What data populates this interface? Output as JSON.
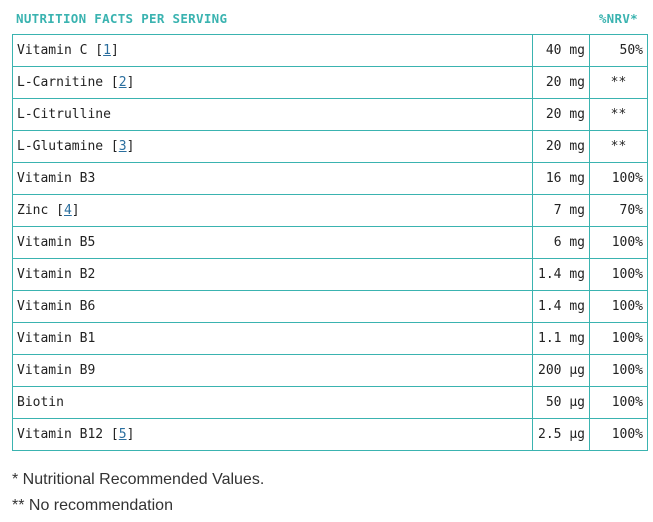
{
  "header": {
    "title": "NUTRITION FACTS PER SERVING",
    "nrv_label": "%NRV*"
  },
  "rows": [
    {
      "name": "Vitamin C",
      "ref": "1",
      "amount": "40 mg",
      "nrv": "50%"
    },
    {
      "name": "L-Carnitine",
      "ref": "2",
      "amount": "20 mg",
      "nrv": "**"
    },
    {
      "name": "L-Citrulline",
      "ref": "",
      "amount": "20 mg",
      "nrv": "**"
    },
    {
      "name": "L-Glutamine",
      "ref": "3",
      "amount": "20 mg",
      "nrv": "**"
    },
    {
      "name": "Vitamin B3",
      "ref": "",
      "amount": "16 mg",
      "nrv": "100%"
    },
    {
      "name": "Zinc",
      "ref": "4",
      "amount": "7 mg",
      "nrv": "70%"
    },
    {
      "name": "Vitamin B5",
      "ref": "",
      "amount": "6 mg",
      "nrv": "100%"
    },
    {
      "name": "Vitamin B2",
      "ref": "",
      "amount": "1.4 mg",
      "nrv": "100%"
    },
    {
      "name": "Vitamin B6",
      "ref": "",
      "amount": "1.4 mg",
      "nrv": "100%"
    },
    {
      "name": "Vitamin B1",
      "ref": "",
      "amount": "1.1 mg",
      "nrv": "100%"
    },
    {
      "name": "Vitamin B9",
      "ref": "",
      "amount": "200 µg",
      "nrv": "100%"
    },
    {
      "name": "Biotin",
      "ref": "",
      "amount": "50 µg",
      "nrv": "100%"
    },
    {
      "name": "Vitamin B12",
      "ref": "5",
      "amount": "2.5 µg",
      "nrv": "100%"
    }
  ],
  "footnotes": {
    "nrv_note": "* Nutritional Recommended Values.",
    "no_rec_note": "** No recommendation"
  },
  "colors": {
    "accent": "#3ab3b0",
    "link": "#2a6e9e"
  }
}
